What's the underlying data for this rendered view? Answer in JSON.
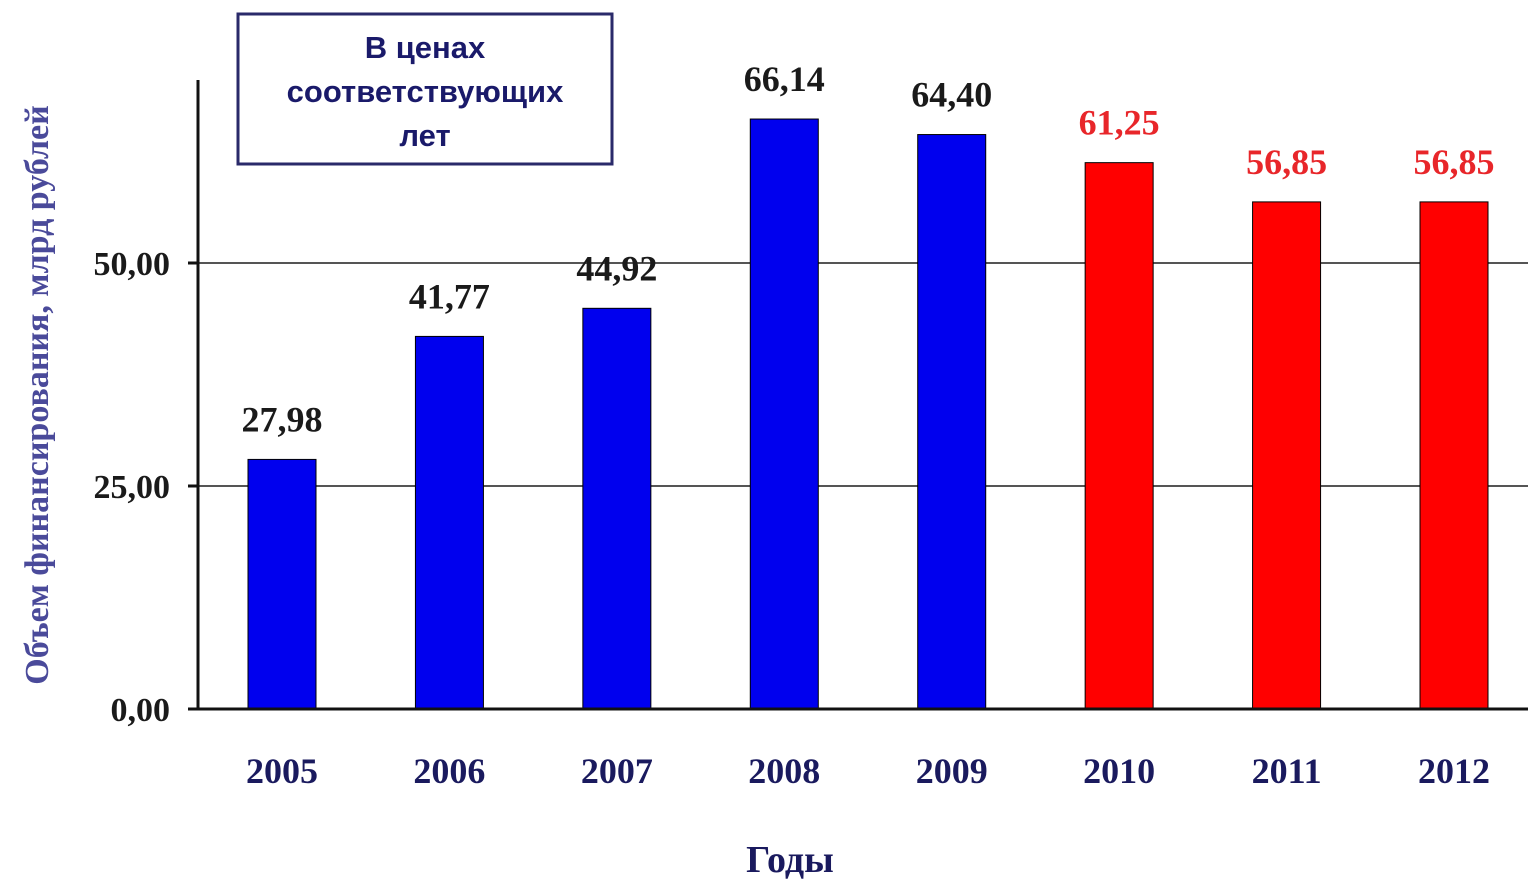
{
  "chart_data": {
    "type": "bar",
    "categories": [
      "2005",
      "2006",
      "2007",
      "2008",
      "2009",
      "2010",
      "2011",
      "2012"
    ],
    "values": [
      27.98,
      41.77,
      44.92,
      66.14,
      64.4,
      61.25,
      56.85,
      56.85
    ],
    "data_labels": [
      "27,98",
      "41,77",
      "44,92",
      "66,14",
      "64,40",
      "61,25",
      "56,85",
      "56,85"
    ],
    "bar_colors": [
      "#0000ee",
      "#0000ee",
      "#0000ee",
      "#0000ee",
      "#0000ee",
      "#ff0000",
      "#ff0000",
      "#ff0000"
    ],
    "label_colors": [
      "#1a1a1a",
      "#1a1a1a",
      "#1a1a1a",
      "#1a1a1a",
      "#1a1a1a",
      "#e8262a",
      "#e8262a",
      "#e8262a"
    ],
    "xlabel": "Годы",
    "ylabel": "Объем финансирования, млрд рублей",
    "ylim": [
      0,
      70
    ],
    "yticks": [
      0,
      25,
      50
    ],
    "ytick_labels": [
      "0,00",
      "25,00",
      "50,00"
    ],
    "grid": true,
    "annotation": {
      "lines": [
        "В ценах",
        "соответствующих",
        "лет"
      ],
      "placement": "top-left"
    },
    "colors": {
      "bar_actual": "#0000ee",
      "bar_plan": "#ff0000",
      "label_actual": "#1a1a1a",
      "label_plan": "#e8262a",
      "axis_title": "#1a1a5e",
      "ylabel": "#4a4a9a",
      "box_border": "#2a2a6a",
      "box_text": "#1a1a6a"
    }
  }
}
